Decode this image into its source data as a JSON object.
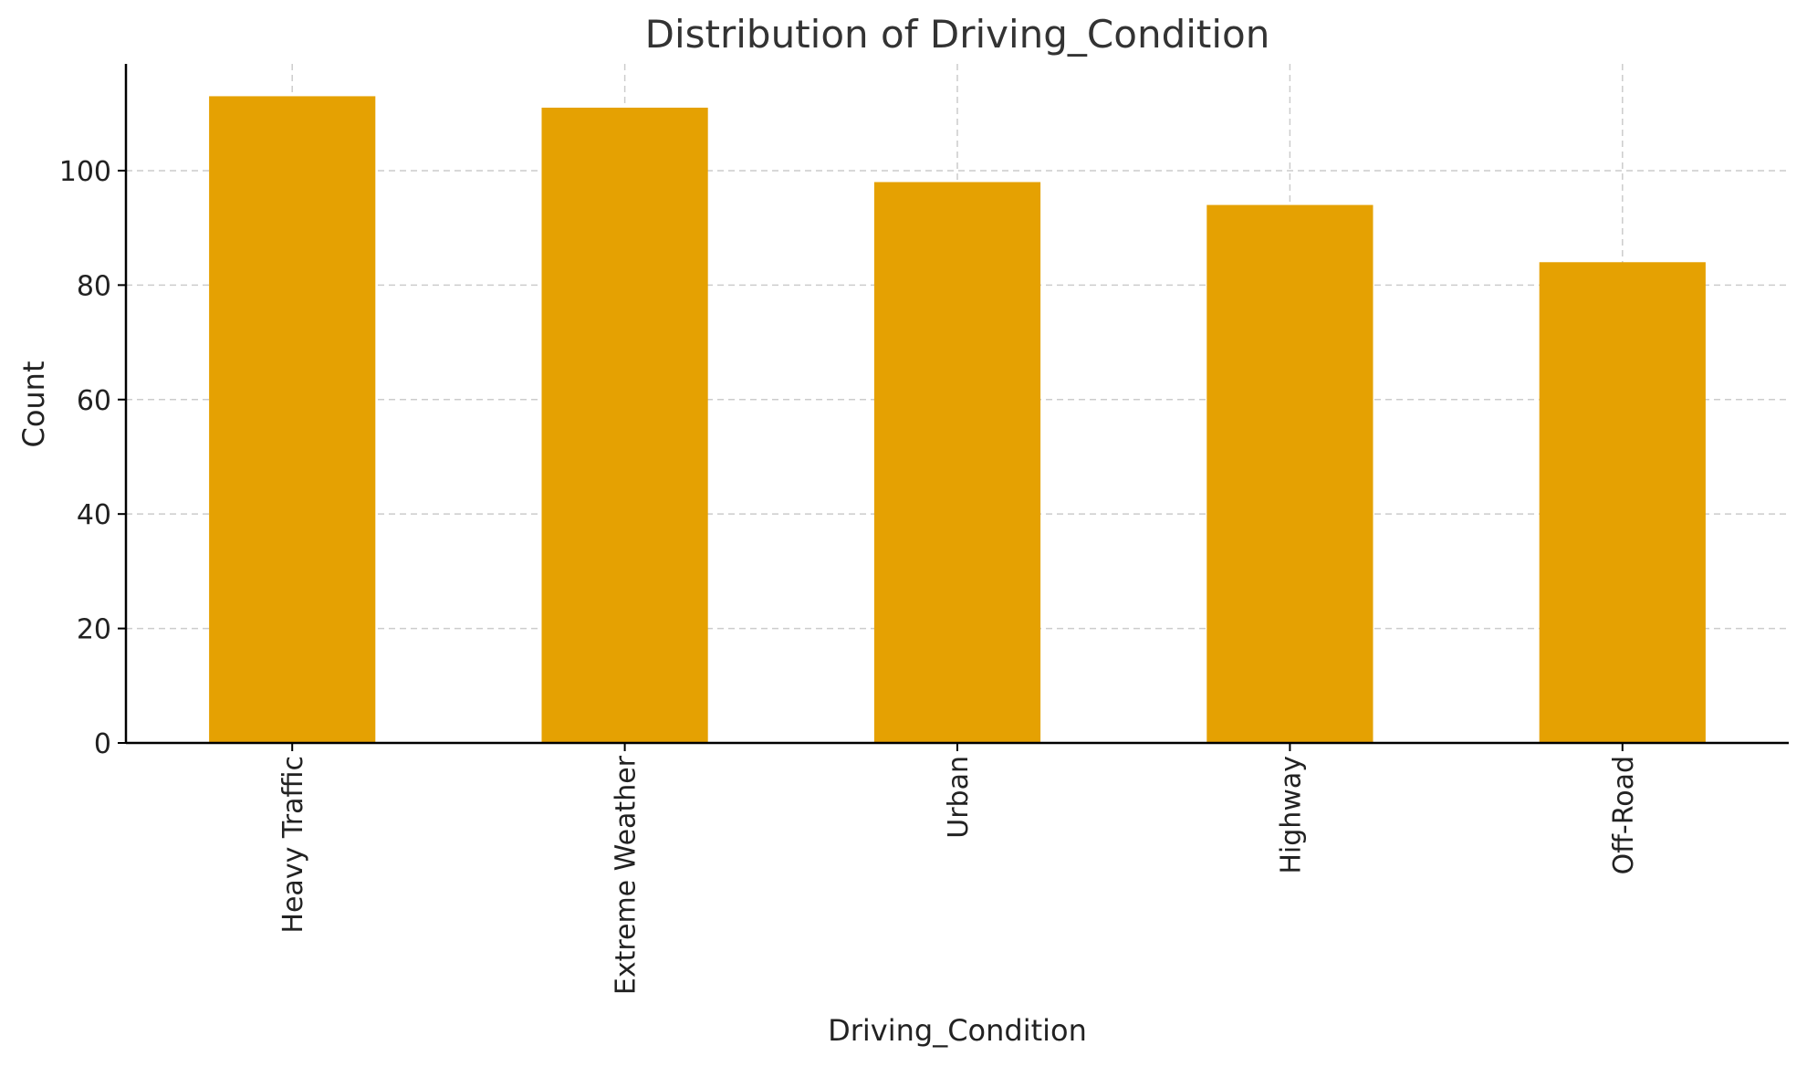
{
  "colors": {
    "bar": "#E5A102",
    "grid": "#CCCCCC",
    "axis": "#000000",
    "title": "#333333"
  },
  "chart_data": {
    "type": "bar",
    "title": "Distribution of Driving_Condition",
    "xlabel": "Driving_Condition",
    "ylabel": "Count",
    "categories": [
      "Heavy Traffic",
      "Extreme Weather",
      "Urban",
      "Highway",
      "Off-Road"
    ],
    "values": [
      113,
      111,
      98,
      94,
      84
    ],
    "ylim": [
      0,
      118.65
    ],
    "yticks": [
      0,
      20,
      40,
      60,
      80,
      100
    ],
    "grid": true,
    "legend": "none",
    "xtick_rotation": "vertical"
  }
}
